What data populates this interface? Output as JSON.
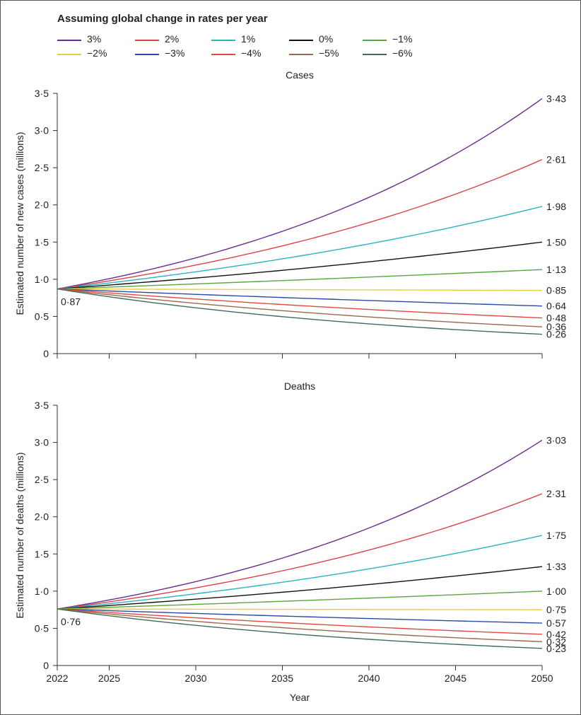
{
  "legend": {
    "title": "Assuming global change in rates per year",
    "items": [
      {
        "label": "3%",
        "color": "#6b2b8f"
      },
      {
        "label": "2%",
        "color": "#d9424b"
      },
      {
        "label": "1%",
        "color": "#26b3c2"
      },
      {
        "label": "0%",
        "color": "#111111"
      },
      {
        "label": "−1%",
        "color": "#5aa642"
      },
      {
        "label": "−2%",
        "color": "#e6cf44"
      },
      {
        "label": "−3%",
        "color": "#2b4aa6"
      },
      {
        "label": "−4%",
        "color": "#e24a3f"
      },
      {
        "label": "−5%",
        "color": "#9a6a4e"
      },
      {
        "label": "−6%",
        "color": "#3e6b5a"
      }
    ]
  },
  "chart_data": [
    {
      "type": "line",
      "title": "Cases",
      "xlabel": "",
      "ylabel": "Estimated number of new cases (millions)",
      "x": [
        2022,
        2050
      ],
      "xticks": [
        2022,
        2025,
        2030,
        2035,
        2040,
        2045,
        2050
      ],
      "yticks": [
        "0",
        "0·5",
        "1·0",
        "1·5",
        "2·0",
        "2·5",
        "3·0",
        "3·5"
      ],
      "ylim": [
        0,
        3.5
      ],
      "start_value": 0.87,
      "start_label": "0·87",
      "series": [
        {
          "name": "3%",
          "rate": 0.03,
          "end_value": 3.43,
          "end_label": "3·43"
        },
        {
          "name": "2%",
          "rate": 0.02,
          "end_value": 2.61,
          "end_label": "2·61"
        },
        {
          "name": "1%",
          "rate": 0.01,
          "end_value": 1.98,
          "end_label": "1·98"
        },
        {
          "name": "0%",
          "rate": 0.0,
          "end_value": 1.5,
          "end_label": "1·50"
        },
        {
          "name": "−1%",
          "rate": -0.01,
          "end_value": 1.13,
          "end_label": "1·13"
        },
        {
          "name": "−2%",
          "rate": -0.02,
          "end_value": 0.85,
          "end_label": "0·85"
        },
        {
          "name": "−3%",
          "rate": -0.03,
          "end_value": 0.64,
          "end_label": "0·64"
        },
        {
          "name": "−4%",
          "rate": -0.04,
          "end_value": 0.48,
          "end_label": "0·48"
        },
        {
          "name": "−5%",
          "rate": -0.05,
          "end_value": 0.36,
          "end_label": "0·36"
        },
        {
          "name": "−6%",
          "rate": -0.06,
          "end_value": 0.26,
          "end_label": "0·26"
        }
      ]
    },
    {
      "type": "line",
      "title": "Deaths",
      "xlabel": "Year",
      "ylabel": "Estimated number of deaths (millions)",
      "x": [
        2022,
        2050
      ],
      "xticks": [
        2022,
        2025,
        2030,
        2035,
        2040,
        2045,
        2050
      ],
      "yticks": [
        "0",
        "0·5",
        "1·0",
        "1·5",
        "2·0",
        "2·5",
        "3·0",
        "3·5"
      ],
      "ylim": [
        0,
        3.5
      ],
      "start_value": 0.76,
      "start_label": "0·76",
      "series": [
        {
          "name": "3%",
          "rate": 0.03,
          "end_value": 3.03,
          "end_label": "3·03"
        },
        {
          "name": "2%",
          "rate": 0.02,
          "end_value": 2.31,
          "end_label": "2·31"
        },
        {
          "name": "1%",
          "rate": 0.01,
          "end_value": 1.75,
          "end_label": "1·75"
        },
        {
          "name": "0%",
          "rate": 0.0,
          "end_value": 1.33,
          "end_label": "1·33"
        },
        {
          "name": "−1%",
          "rate": -0.01,
          "end_value": 1.0,
          "end_label": "1·00"
        },
        {
          "name": "−2%",
          "rate": -0.02,
          "end_value": 0.75,
          "end_label": "0·75"
        },
        {
          "name": "−3%",
          "rate": -0.03,
          "end_value": 0.57,
          "end_label": "0·57"
        },
        {
          "name": "−4%",
          "rate": -0.04,
          "end_value": 0.42,
          "end_label": "0·42"
        },
        {
          "name": "−5%",
          "rate": -0.05,
          "end_value": 0.32,
          "end_label": "0·32"
        },
        {
          "name": "−6%",
          "rate": -0.06,
          "end_value": 0.23,
          "end_label": "0·23"
        }
      ]
    }
  ]
}
